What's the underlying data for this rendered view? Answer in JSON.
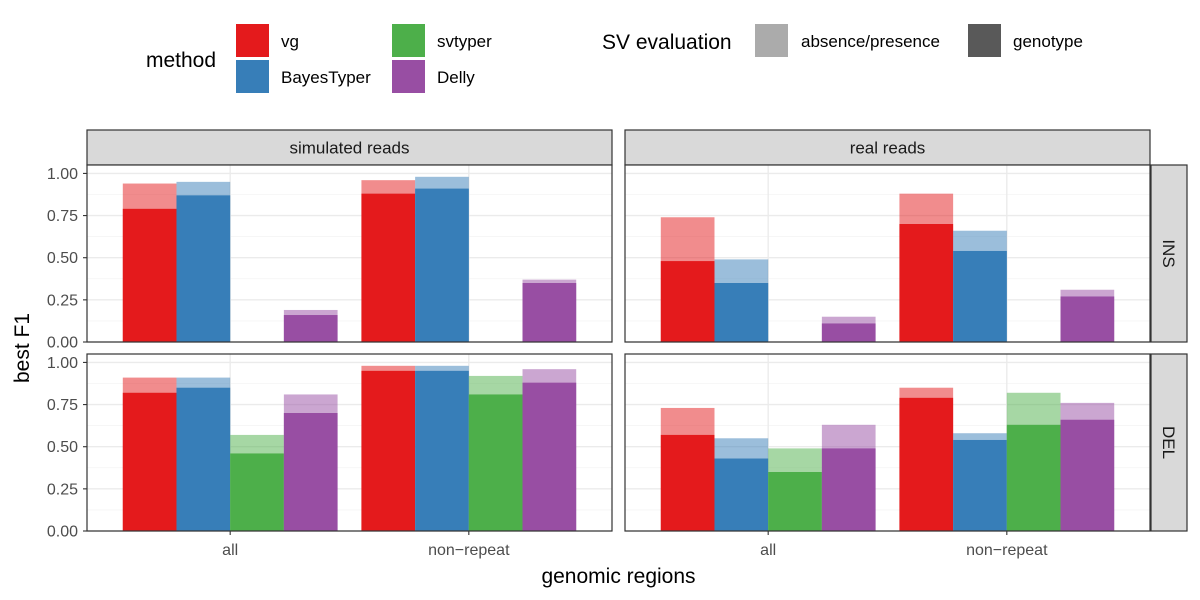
{
  "chart_data": {
    "type": "bar",
    "xlabel": "genomic regions",
    "ylabel": "best F1",
    "ylim": [
      0,
      1.05
    ],
    "yticks": [
      0,
      0.25,
      0.5,
      0.75,
      1
    ],
    "ytick_labels": [
      "0.00",
      "0.25",
      "0.50",
      "0.75",
      "1.00"
    ],
    "categories": [
      "all",
      "non−repeat"
    ],
    "methods": [
      {
        "name": "vg",
        "color": "#E41A1C"
      },
      {
        "name": "BayesTyper",
        "color": "#377EB8"
      },
      {
        "name": "svtyper",
        "color": "#4DAF4A"
      },
      {
        "name": "Delly",
        "color": "#984EA3"
      }
    ],
    "legend": {
      "method_title": "method",
      "eval_title": "SV evaluation",
      "eval_levels": [
        {
          "name": "absence/presence",
          "color": "#ABABAB"
        },
        {
          "name": "genotype",
          "color": "#595959"
        }
      ]
    },
    "facet_cols": [
      "simulated reads",
      "real reads"
    ],
    "facet_rows": [
      "INS",
      "DEL"
    ],
    "panels": [
      {
        "col": "simulated reads",
        "row": "INS",
        "genotype": [
          [
            0.79,
            0.87,
            0.0,
            0.16
          ],
          [
            0.88,
            0.91,
            0.0,
            0.35
          ]
        ],
        "absence_presence": [
          [
            0.94,
            0.95,
            0.0,
            0.19
          ],
          [
            0.96,
            0.98,
            0.0,
            0.37
          ]
        ]
      },
      {
        "col": "real reads",
        "row": "INS",
        "genotype": [
          [
            0.48,
            0.35,
            0.0,
            0.11
          ],
          [
            0.7,
            0.54,
            0.0,
            0.27
          ]
        ],
        "absence_presence": [
          [
            0.74,
            0.49,
            0.0,
            0.15
          ],
          [
            0.88,
            0.66,
            0.0,
            0.31
          ]
        ]
      },
      {
        "col": "simulated reads",
        "row": "DEL",
        "genotype": [
          [
            0.82,
            0.85,
            0.46,
            0.7
          ],
          [
            0.95,
            0.95,
            0.81,
            0.88
          ]
        ],
        "absence_presence": [
          [
            0.91,
            0.91,
            0.57,
            0.81
          ],
          [
            0.98,
            0.98,
            0.92,
            0.96
          ]
        ]
      },
      {
        "col": "real reads",
        "row": "DEL",
        "genotype": [
          [
            0.57,
            0.43,
            0.35,
            0.49
          ],
          [
            0.79,
            0.54,
            0.63,
            0.66
          ]
        ],
        "absence_presence": [
          [
            0.73,
            0.55,
            0.49,
            0.63
          ],
          [
            0.85,
            0.58,
            0.82,
            0.76
          ]
        ]
      }
    ]
  }
}
